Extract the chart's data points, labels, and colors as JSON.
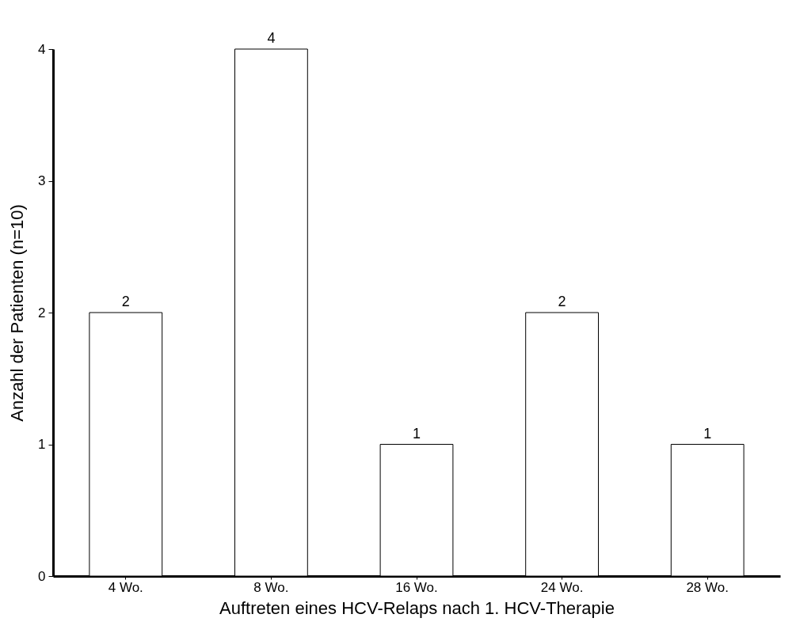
{
  "chart_data": {
    "type": "bar",
    "xlabel": "Auftreten eines HCV-Relaps nach 1. HCV-Therapie",
    "ylabel": "Anzahl der Patienten (n=10)",
    "categories": [
      "4 Wo.",
      "8 Wo.",
      "16 Wo.",
      "24 Wo.",
      "28 Wo."
    ],
    "values": [
      2,
      4,
      1,
      2,
      1
    ],
    "color": "#ffffff",
    "ylim": [
      0,
      4
    ],
    "yticks": [
      0,
      1,
      2,
      3,
      4
    ],
    "grid": false,
    "data_labels": true
  }
}
